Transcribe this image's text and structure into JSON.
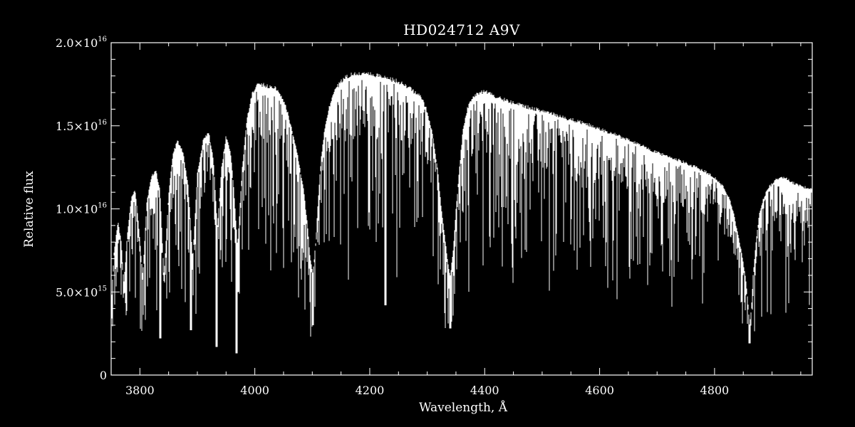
{
  "chart_data": {
    "type": "line",
    "title": "HD024712   A9V",
    "xlabel": "Wavelength, Å",
    "ylabel": "Relative flux",
    "xlim": [
      3750,
      4970
    ],
    "ylim": [
      0,
      2e+16
    ],
    "grid": false,
    "x_ticks": [
      3800,
      4000,
      4200,
      4400,
      4600,
      4800
    ],
    "x_minor_step": 50,
    "y_ticks": [
      {
        "value": 0,
        "mantissa": "0",
        "exponent": ""
      },
      {
        "value": 5000000000000000.0,
        "mantissa": "5.0×10",
        "exponent": "15"
      },
      {
        "value": 1e+16,
        "mantissa": "1.0×10",
        "exponent": "16"
      },
      {
        "value": 1.5e+16,
        "mantissa": "1.5×10",
        "exponent": "16"
      },
      {
        "value": 2e+16,
        "mantissa": "2.0×10",
        "exponent": "16"
      }
    ],
    "y_minor_step": 1000000000000000.0,
    "series": [
      {
        "color": "#ffffff",
        "envelope": {
          "x": [
            3750,
            3755,
            3762,
            3768,
            3772,
            3778,
            3785,
            3792,
            3798,
            3805,
            3812,
            3820,
            3828,
            3835,
            3842,
            3850,
            3858,
            3866,
            3875,
            3884,
            3892,
            3900,
            3910,
            3920,
            3928,
            3935,
            3942,
            3950,
            3958,
            3964,
            3970,
            3978,
            3986,
            3995,
            4005,
            4015,
            4025,
            4035,
            4045,
            4055,
            4065,
            4075,
            4085,
            4092,
            4096,
            4101,
            4106,
            4110,
            4115,
            4122,
            4130,
            4140,
            4150,
            4160,
            4175,
            4190,
            4210,
            4230,
            4250,
            4270,
            4290,
            4300,
            4310,
            4318,
            4325,
            4332,
            4337,
            4340,
            4345,
            4350,
            4356,
            4362,
            4370,
            4380,
            4390,
            4400,
            4420,
            4440,
            4460,
            4480,
            4500,
            4520,
            4540,
            4560,
            4580,
            4600,
            4620,
            4640,
            4660,
            4680,
            4700,
            4720,
            4740,
            4760,
            4780,
            4800,
            4815,
            4825,
            4832,
            4838,
            4845,
            4850,
            4855,
            4858,
            4861,
            4864,
            4867,
            4872,
            4878,
            4886,
            4895,
            4905,
            4915,
            4925,
            4935,
            4945,
            4955,
            4965,
            4970
          ],
          "y": [
            4000000000000000.0,
            7500000000000000.0,
            9300000000000000.0,
            8000000000000000.0,
            5500000000000000.0,
            8500000000000000.0,
            1.07e+16,
            1.12e+16,
            9000000000000000.0,
            6000000000000000.0,
            1.05e+16,
            1.2e+16,
            1.24e+16,
            1.12e+16,
            6000000000000000.0,
            1.1e+16,
            1.35e+16,
            1.42e+16,
            1.35e+16,
            1.15e+16,
            7000000000000000.0,
            1.22e+16,
            1.42e+16,
            1.47e+16,
            1.3e+16,
            9000000000000000.0,
            1.25e+16,
            1.45e+16,
            1.35e+16,
            1.1e+16,
            7800000000000000.0,
            1.25e+16,
            1.55e+16,
            1.7e+16,
            1.76e+16,
            1.76e+16,
            1.75e+16,
            1.74e+16,
            1.7e+16,
            1.62e+16,
            1.48e+16,
            1.32e+16,
            1.12e+16,
            9000000000000000.0,
            7200000000000000.0,
            6200000000000000.0,
            8000000000000000.0,
            1.05e+16,
            1.3e+16,
            1.5e+16,
            1.63e+16,
            1.73e+16,
            1.78e+16,
            1.81e+16,
            1.83e+16,
            1.83e+16,
            1.82e+16,
            1.8e+16,
            1.78e+16,
            1.74e+16,
            1.68e+16,
            1.6e+16,
            1.45e+16,
            1.25e+16,
            1e+16,
            8000000000000000.0,
            6500000000000000.0,
            6000000000000000.0,
            7500000000000000.0,
            1e+16,
            1.25e+16,
            1.48e+16,
            1.62e+16,
            1.68e+16,
            1.71e+16,
            1.72e+16,
            1.69e+16,
            1.66e+16,
            1.64e+16,
            1.62e+16,
            1.6e+16,
            1.58e+16,
            1.56e+16,
            1.54e+16,
            1.52e+16,
            1.49e+16,
            1.47e+16,
            1.44e+16,
            1.41e+16,
            1.38e+16,
            1.35e+16,
            1.32e+16,
            1.3e+16,
            1.27e+16,
            1.24e+16,
            1.2e+16,
            1.14e+16,
            1.08e+16,
            1e+16,
            9000000000000000.0,
            7800000000000000.0,
            6800000000000000.0,
            5600000000000000.0,
            4500000000000000.0,
            3000000000000000.0,
            4000000000000000.0,
            6000000000000000.0,
            8000000000000000.0,
            9800000000000000.0,
            1.08e+16,
            1.14e+16,
            1.18e+16,
            1.2e+16,
            1.19e+16,
            1.17e+16,
            1.15e+16,
            1.14e+16,
            1.13e+16,
            1.13e+16
          ]
        },
        "absorption_lines": [
          {
            "x": 3835,
            "depth": 2200000000000000.0
          },
          {
            "x": 3889,
            "depth": 2700000000000000.0
          },
          {
            "x": 3933,
            "depth": 1700000000000000.0
          },
          {
            "x": 3968,
            "depth": 1300000000000000.0
          },
          {
            "x": 4101,
            "depth": 3000000000000000.0
          },
          {
            "x": 4227,
            "depth": 4200000000000000.0
          },
          {
            "x": 4340,
            "depth": 2800000000000000.0
          },
          {
            "x": 4861,
            "depth": 1900000000000000.0
          }
        ]
      }
    ]
  }
}
